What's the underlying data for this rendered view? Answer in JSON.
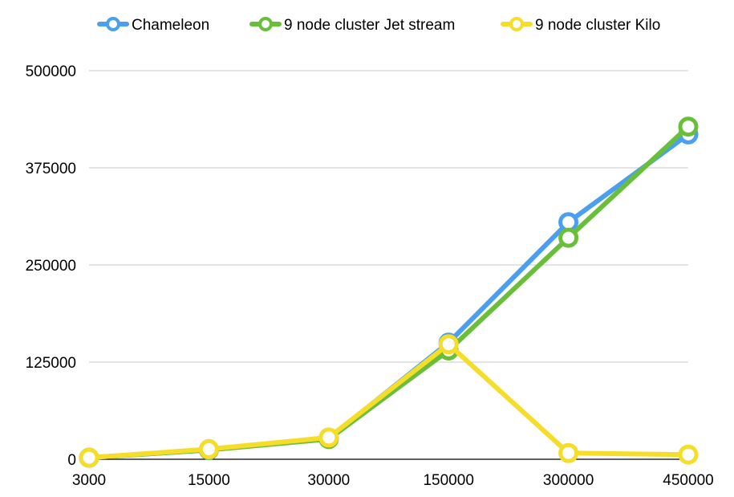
{
  "chart_data": {
    "type": "line",
    "categories": [
      "3000",
      "15000",
      "30000",
      "150000",
      "300000",
      "450000"
    ],
    "ylim": [
      0,
      500000
    ],
    "yticks": [
      "0",
      "125000",
      "250000",
      "375000",
      "500000"
    ],
    "grid": true,
    "legend_position": "top",
    "series": [
      {
        "name": "Chameleon",
        "color": "#4a9ff0",
        "values": [
          2000,
          12000,
          27000,
          150000,
          305000,
          418000
        ]
      },
      {
        "name": "9 node cluster Jet stream",
        "color": "#6abf3a",
        "values": [
          2000,
          12000,
          26000,
          140000,
          285000,
          428000
        ]
      },
      {
        "name": "9 node cluster Kilo",
        "color": "#f6dd2a",
        "values": [
          2000,
          13000,
          28000,
          148000,
          8000,
          6000
        ]
      }
    ]
  }
}
